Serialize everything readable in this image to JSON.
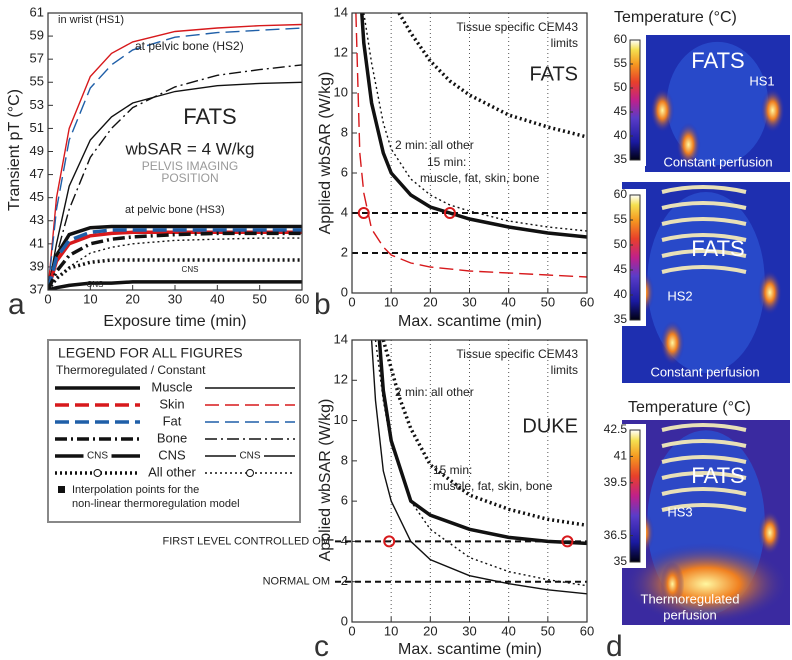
{
  "chart_data": [
    {
      "type": "line",
      "panel_label": "a",
      "x_label": "Exposure time (min)",
      "y_label": "Transient pT (°C)",
      "xlim": [
        0,
        60
      ],
      "ylim": [
        37,
        61
      ],
      "xticks": [
        0,
        10,
        20,
        30,
        40,
        50,
        60
      ],
      "yticks": [
        37,
        39,
        41,
        43,
        45,
        47,
        49,
        51,
        53,
        55,
        57,
        59,
        61
      ],
      "grid": "none",
      "annotations": [
        "in wrist (HS1)",
        "at pelvic bone (HS2)",
        "FATS",
        "wbSAR = 4 W/kg",
        "PELVIS IMAGING",
        "POSITION",
        "at pelvic bone (HS3)",
        "CNS",
        "CNS"
      ],
      "x": [
        0,
        2,
        5,
        10,
        15,
        20,
        30,
        40,
        50,
        60
      ],
      "series": [
        {
          "color": "#d7191c",
          "dash": "solid",
          "thick": false,
          "values": [
            37,
            45,
            51,
            55.5,
            57.5,
            58.5,
            59.4,
            59.7,
            59.9,
            60
          ]
        },
        {
          "color": "#1f5fa8",
          "dash": "dashed",
          "thick": false,
          "values": [
            37,
            44,
            50,
            54.5,
            56.5,
            57.8,
            58.9,
            59.3,
            59.5,
            59.7
          ]
        },
        {
          "color": "#111111",
          "dash": "dashdot",
          "thick": false,
          "values": [
            37,
            40,
            44,
            48.5,
            51,
            52.8,
            54.6,
            55.6,
            56.1,
            56.5
          ]
        },
        {
          "color": "#111111",
          "dash": "solid",
          "thick": false,
          "values": [
            37,
            41,
            46,
            50,
            52,
            53.2,
            54.2,
            54.7,
            54.9,
            55
          ]
        },
        {
          "color": "#111111",
          "dash": "solid",
          "thick": true,
          "values": [
            37,
            40,
            41.8,
            42.4,
            42.5,
            42.5,
            42.5,
            42.5,
            42.5,
            42.5
          ]
        },
        {
          "color": "#d7191c",
          "dash": "solid",
          "thick": true,
          "values": [
            37,
            39.5,
            41,
            41.7,
            41.9,
            42,
            42,
            42,
            42,
            42
          ]
        },
        {
          "color": "#1f5fa8",
          "dash": "dashed",
          "thick": true,
          "values": [
            37,
            39.8,
            41.3,
            42,
            42.2,
            42.2,
            42.2,
            42.2,
            42.2,
            42.2
          ]
        },
        {
          "color": "#111111",
          "dash": "dashdot",
          "thick": true,
          "values": [
            37,
            38.6,
            40,
            41,
            41.4,
            41.6,
            41.8,
            41.9,
            41.9,
            41.9
          ]
        },
        {
          "color": "#111111",
          "dash": "dotted",
          "thick": false,
          "values": [
            37,
            38,
            39,
            40.2,
            40.7,
            41,
            41.3,
            41.4,
            41.5,
            41.5
          ]
        },
        {
          "color": "#111111",
          "dash": "dotted",
          "thick": true,
          "values": [
            37,
            38,
            38.9,
            39.4,
            39.6,
            39.6,
            39.6,
            39.6,
            39.6,
            39.6
          ]
        },
        {
          "color": "#111111",
          "dash": "solid",
          "thick": true,
          "values": [
            37,
            37.2,
            37.4,
            37.6,
            37.6,
            37.7,
            37.7,
            37.7,
            37.7,
            37.7
          ]
        }
      ]
    },
    {
      "type": "line",
      "panel_label": "b",
      "x_label": "Max. scantime (min)",
      "y_label": "Applied wbSAR (W/kg)",
      "xlim": [
        0,
        60
      ],
      "ylim": [
        0,
        14
      ],
      "xticks": [
        0,
        10,
        20,
        30,
        40,
        50,
        60
      ],
      "yticks": [
        0,
        2,
        4,
        6,
        8,
        10,
        12,
        14
      ],
      "grid": "x",
      "annotations": [
        "Tissue specific CEM43",
        "limits",
        "FATS",
        "2 min: all other",
        "15 min:",
        "muscle, fat, skin, bone"
      ],
      "hlines": [
        4,
        2
      ],
      "points": {
        "color": "#d7191c",
        "x": [
          3,
          25
        ],
        "values": [
          4,
          4
        ]
      },
      "series": [
        {
          "color": "#111111",
          "dash": "solid",
          "thick": true,
          "x": [
            2.5,
            3,
            5,
            8,
            10,
            15,
            20,
            25,
            30,
            40,
            50,
            60
          ],
          "values": [
            14,
            12.5,
            9.5,
            7,
            6,
            4.9,
            4.3,
            4,
            3.7,
            3.3,
            3,
            2.8
          ]
        },
        {
          "color": "#111111",
          "dash": "dotted",
          "thick": true,
          "x": [
            12,
            15,
            20,
            25,
            30,
            40,
            50,
            60
          ],
          "values": [
            14,
            13,
            11.6,
            10.6,
            9.9,
            8.9,
            8.3,
            7.8
          ]
        },
        {
          "color": "#111111",
          "dash": "dotted",
          "thick": false,
          "x": [
            3,
            5,
            8,
            10,
            15,
            20,
            25,
            30,
            40,
            50,
            60
          ],
          "values": [
            14,
            11.5,
            8.5,
            7.2,
            5.7,
            4.9,
            4.4,
            4.1,
            3.6,
            3.3,
            3.1
          ]
        },
        {
          "color": "#d7191c",
          "dash": "dashed",
          "thick": false,
          "x": [
            1,
            2,
            3,
            5,
            8,
            10,
            15,
            20,
            30,
            40,
            50,
            60
          ],
          "values": [
            14,
            7,
            5,
            3.2,
            2.3,
            1.9,
            1.5,
            1.3,
            1.1,
            1,
            0.9,
            0.8
          ]
        }
      ]
    },
    {
      "type": "line",
      "panel_label": "c",
      "x_label": "Max. scantime (min)",
      "y_label": "Applied wbSAR (W/kg)",
      "xlim": [
        0,
        60
      ],
      "ylim": [
        0,
        14
      ],
      "xticks": [
        0,
        10,
        20,
        30,
        40,
        50,
        60
      ],
      "yticks": [
        0,
        2,
        4,
        6,
        8,
        10,
        12,
        14
      ],
      "grid": "x",
      "annotations": [
        "Tissue specific CEM43",
        "limits",
        "2 min: all other",
        "DUKE",
        "15 min:",
        "muscle, fat, skin, bone"
      ],
      "hlines": [
        {
          "value": 4,
          "label": "FIRST LEVEL CONTROLLED OM"
        },
        {
          "value": 2,
          "label": "NORMAL OM"
        }
      ],
      "points": {
        "color": "#d7191c",
        "x": [
          9.5,
          55
        ],
        "values": [
          4,
          4
        ]
      },
      "series": [
        {
          "color": "#111111",
          "dash": "solid",
          "thick": true,
          "x": [
            7,
            8,
            10,
            15,
            20,
            30,
            40,
            50,
            55,
            60
          ],
          "values": [
            14,
            11.5,
            9,
            6,
            5.3,
            4.6,
            4.2,
            4,
            3.95,
            3.9
          ]
        },
        {
          "color": "#111111",
          "dash": "dotted",
          "thick": true,
          "x": [
            8,
            10,
            12,
            15,
            20,
            30,
            40,
            50,
            60
          ],
          "values": [
            14,
            12.6,
            11.2,
            9.6,
            7.8,
            6.3,
            5.6,
            5.1,
            4.8
          ]
        },
        {
          "color": "#111111",
          "dash": "solid",
          "thick": false,
          "x": [
            5,
            6,
            8,
            10,
            15,
            20,
            30,
            40,
            50,
            60
          ],
          "values": [
            14,
            11,
            7.5,
            6,
            4,
            3.1,
            2.3,
            1.9,
            1.6,
            1.4
          ]
        },
        {
          "color": "#111111",
          "dash": "dotted",
          "thick": false,
          "x": [
            6,
            8,
            10,
            15,
            20,
            30,
            40,
            50,
            60
          ],
          "values": [
            14,
            11,
            8.8,
            6,
            4.6,
            3.2,
            2.5,
            2.1,
            1.8
          ]
        }
      ]
    }
  ],
  "legend_box": {
    "title": "LEGEND FOR ALL FIGURES",
    "subtitle": "Thermoregulated  /  Constant",
    "rows": [
      {
        "label": "Muscle",
        "color": "#111111",
        "dash": "solid"
      },
      {
        "label": "Skin",
        "color": "#d7191c",
        "dash": "dashed"
      },
      {
        "label": "Fat",
        "color": "#1f5fa8",
        "dash": "dashed"
      },
      {
        "label": "Bone",
        "color": "#111111",
        "dash": "dashdot"
      },
      {
        "label": "CNS",
        "color": "#111111",
        "dash": "solid"
      },
      {
        "label": "All other",
        "color": "#111111",
        "dash": "dotted"
      }
    ],
    "note": [
      "Interpolation points for the",
      "non-linear thermoregulation model"
    ]
  },
  "images": {
    "panel_label": "d",
    "panels": [
      {
        "title": "Temperature (°C)",
        "cbar_lim": [
          35,
          60
        ],
        "cbar_ticks": [
          35,
          40,
          45,
          50,
          55,
          60
        ],
        "texts": [
          "FATS",
          "HS1",
          "Constant perfusion"
        ]
      },
      {
        "cbar_lim": [
          35,
          60
        ],
        "cbar_ticks": [
          35,
          40,
          45,
          50,
          55,
          60
        ],
        "texts": [
          "FATS",
          "HS2",
          "Constant perfusion"
        ]
      },
      {
        "title": "Temperature (°C)",
        "cbar_lim": [
          35,
          42.5
        ],
        "cbar_ticks": [
          35,
          36.5,
          39.5,
          41,
          42.5
        ],
        "texts": [
          "FATS",
          "HS3",
          "Thermoregulated",
          "perfusion"
        ]
      }
    ]
  }
}
